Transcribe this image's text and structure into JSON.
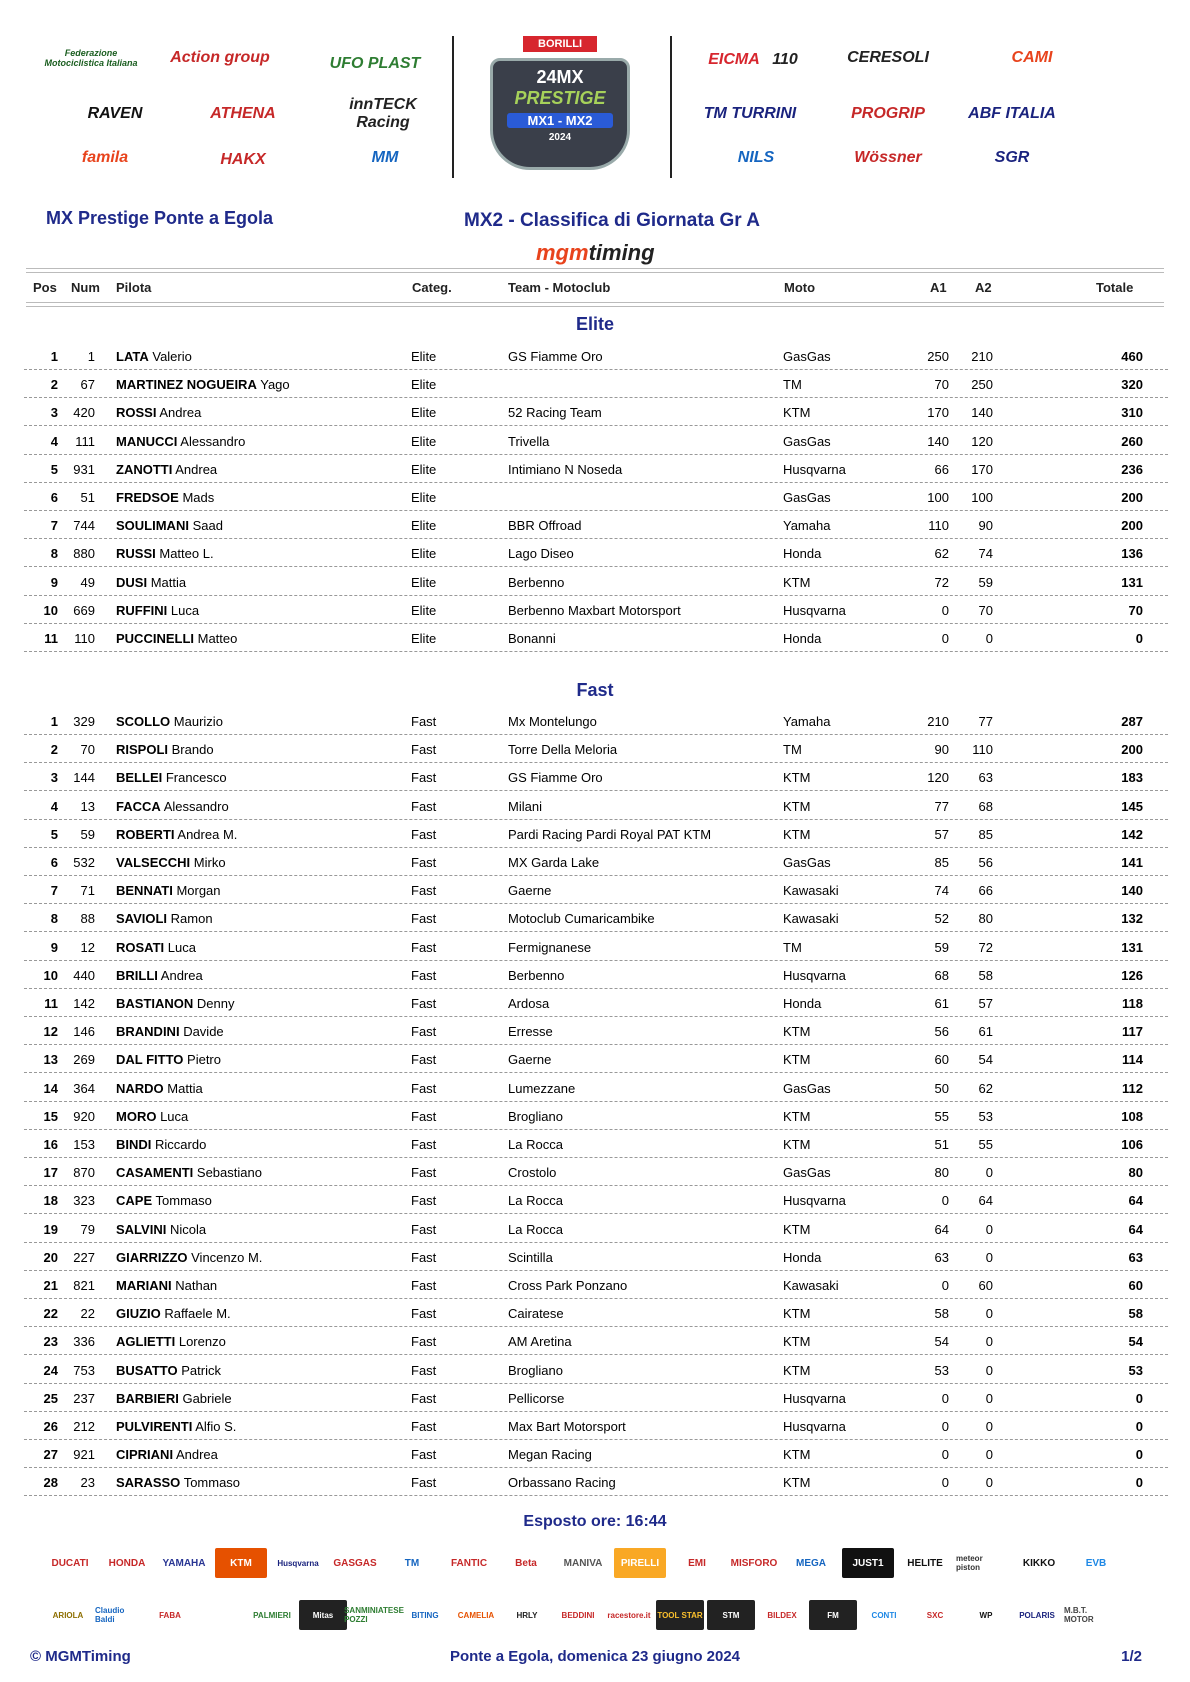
{
  "header_logos_left": [
    "Federazione Motociclistica Italiana",
    "Action group",
    "UFO PLAST",
    "RAVEN",
    "ATHENA",
    "innTECK Racing",
    "famila",
    "HAKX",
    "MM"
  ],
  "center_logo": {
    "top": "BORILLI",
    "brand": "24MX",
    "title": "PRESTIGE",
    "sub": "MX1 - MX2",
    "year": "2024"
  },
  "header_logos_right": [
    "EICMA",
    "110",
    "CERESOLI",
    "CAMI",
    "TM TURRINI",
    "PROGRIP",
    "ABF ITALIA",
    "NILS",
    "Wössner",
    "SGR"
  ],
  "event_title": "MX Prestige Ponte a Egola",
  "report_title": "MX2 - Classifica di Giornata Gr A",
  "timing_logo": {
    "a": "mgm",
    "b": "timing"
  },
  "columns": {
    "pos": "Pos",
    "num": "Num",
    "pilota": "Pilota",
    "categ": "Categ.",
    "team": "Team - Motoclub",
    "moto": "Moto",
    "a1": "A1",
    "a2": "A2",
    "totale": "Totale"
  },
  "sections": [
    {
      "title": "Elite",
      "rows": [
        [
          "1",
          "1",
          "LATA",
          "Valerio",
          "Elite",
          "GS Fiamme Oro",
          "GasGas",
          "250",
          "210",
          "460"
        ],
        [
          "2",
          "67",
          "MARTINEZ NOGUEIRA",
          "Yago",
          "Elite",
          "",
          "TM",
          "70",
          "250",
          "320"
        ],
        [
          "3",
          "420",
          "ROSSI",
          "Andrea",
          "Elite",
          "52 Racing Team",
          "KTM",
          "170",
          "140",
          "310"
        ],
        [
          "4",
          "111",
          "MANUCCI",
          "Alessandro",
          "Elite",
          "Trivella",
          "GasGas",
          "140",
          "120",
          "260"
        ],
        [
          "5",
          "931",
          "ZANOTTI",
          "Andrea",
          "Elite",
          "Intimiano N Noseda",
          "Husqvarna",
          "66",
          "170",
          "236"
        ],
        [
          "6",
          "51",
          "FREDSOE",
          "Mads",
          "Elite",
          "",
          "GasGas",
          "100",
          "100",
          "200"
        ],
        [
          "7",
          "744",
          "SOULIMANI",
          "Saad",
          "Elite",
          "BBR Offroad",
          "Yamaha",
          "110",
          "90",
          "200"
        ],
        [
          "8",
          "880",
          "RUSSI",
          "Matteo L.",
          "Elite",
          "Lago Diseo",
          "Honda",
          "62",
          "74",
          "136"
        ],
        [
          "9",
          "49",
          "DUSI",
          "Mattia",
          "Elite",
          "Berbenno",
          "KTM",
          "72",
          "59",
          "131"
        ],
        [
          "10",
          "669",
          "RUFFINI",
          "Luca",
          "Elite",
          "Berbenno Maxbart Motorsport",
          "Husqvarna",
          "0",
          "70",
          "70"
        ],
        [
          "11",
          "110",
          "PUCCINELLI",
          "Matteo",
          "Elite",
          "Bonanni",
          "Honda",
          "0",
          "0",
          "0"
        ]
      ]
    },
    {
      "title": "Fast",
      "rows": [
        [
          "1",
          "329",
          "SCOLLO",
          "Maurizio",
          "Fast",
          "Mx Montelungo",
          "Yamaha",
          "210",
          "77",
          "287"
        ],
        [
          "2",
          "70",
          "RISPOLI",
          "Brando",
          "Fast",
          "Torre Della Meloria",
          "TM",
          "90",
          "110",
          "200"
        ],
        [
          "3",
          "144",
          "BELLEI",
          "Francesco",
          "Fast",
          "GS Fiamme Oro",
          "KTM",
          "120",
          "63",
          "183"
        ],
        [
          "4",
          "13",
          "FACCA",
          "Alessandro",
          "Fast",
          "Milani",
          "KTM",
          "77",
          "68",
          "145"
        ],
        [
          "5",
          "59",
          "ROBERTI",
          "Andrea M.",
          "Fast",
          "Pardi Racing Pardi Royal PAT KTM",
          "KTM",
          "57",
          "85",
          "142"
        ],
        [
          "6",
          "532",
          "VALSECCHI",
          "Mirko",
          "Fast",
          "MX Garda Lake",
          "GasGas",
          "85",
          "56",
          "141"
        ],
        [
          "7",
          "71",
          "BENNATI",
          "Morgan",
          "Fast",
          "Gaerne",
          "Kawasaki",
          "74",
          "66",
          "140"
        ],
        [
          "8",
          "88",
          "SAVIOLI",
          "Ramon",
          "Fast",
          "Motoclub Cumaricambike",
          "Kawasaki",
          "52",
          "80",
          "132"
        ],
        [
          "9",
          "12",
          "ROSATI",
          "Luca",
          "Fast",
          "Fermignanese",
          "TM",
          "59",
          "72",
          "131"
        ],
        [
          "10",
          "440",
          "BRILLI",
          "Andrea",
          "Fast",
          "Berbenno",
          "Husqvarna",
          "68",
          "58",
          "126"
        ],
        [
          "11",
          "142",
          "BASTIANON",
          "Denny",
          "Fast",
          "Ardosa",
          "Honda",
          "61",
          "57",
          "118"
        ],
        [
          "12",
          "146",
          "BRANDINI",
          "Davide",
          "Fast",
          "Erresse",
          "KTM",
          "56",
          "61",
          "117"
        ],
        [
          "13",
          "269",
          "DAL FITTO",
          "Pietro",
          "Fast",
          "Gaerne",
          "KTM",
          "60",
          "54",
          "114"
        ],
        [
          "14",
          "364",
          "NARDO",
          "Mattia",
          "Fast",
          "Lumezzane",
          "GasGas",
          "50",
          "62",
          "112"
        ],
        [
          "15",
          "920",
          "MORO",
          "Luca",
          "Fast",
          "Brogliano",
          "KTM",
          "55",
          "53",
          "108"
        ],
        [
          "16",
          "153",
          "BINDI",
          "Riccardo",
          "Fast",
          "La Rocca",
          "KTM",
          "51",
          "55",
          "106"
        ],
        [
          "17",
          "870",
          "CASAMENTI",
          "Sebastiano",
          "Fast",
          "Crostolo",
          "GasGas",
          "80",
          "0",
          "80"
        ],
        [
          "18",
          "323",
          "CAPE",
          "Tommaso",
          "Fast",
          "La Rocca",
          "Husqvarna",
          "0",
          "64",
          "64"
        ],
        [
          "19",
          "79",
          "SALVINI",
          "Nicola",
          "Fast",
          "La Rocca",
          "KTM",
          "64",
          "0",
          "64"
        ],
        [
          "20",
          "227",
          "GIARRIZZO",
          "Vincenzo M.",
          "Fast",
          "Scintilla",
          "Honda",
          "63",
          "0",
          "63"
        ],
        [
          "21",
          "821",
          "MARIANI",
          "Nathan",
          "Fast",
          "Cross Park Ponzano",
          "Kawasaki",
          "0",
          "60",
          "60"
        ],
        [
          "22",
          "22",
          "GIUZIO",
          "Raffaele M.",
          "Fast",
          "Cairatese",
          "KTM",
          "58",
          "0",
          "58"
        ],
        [
          "23",
          "336",
          "AGLIETTI",
          "Lorenzo",
          "Fast",
          "AM Aretina",
          "KTM",
          "54",
          "0",
          "54"
        ],
        [
          "24",
          "753",
          "BUSATTO",
          "Patrick",
          "Fast",
          "Brogliano",
          "KTM",
          "53",
          "0",
          "53"
        ],
        [
          "25",
          "237",
          "BARBIERI",
          "Gabriele",
          "Fast",
          "Pellicorse",
          "Husqvarna",
          "0",
          "0",
          "0"
        ],
        [
          "26",
          "212",
          "PULVIRENTI",
          "Alfio S.",
          "Fast",
          "Max Bart Motorsport",
          "Husqvarna",
          "0",
          "0",
          "0"
        ],
        [
          "27",
          "921",
          "CIPRIANI",
          "Andrea",
          "Fast",
          "Megan Racing",
          "KTM",
          "0",
          "0",
          "0"
        ],
        [
          "28",
          "23",
          "SARASSO",
          "Tommaso",
          "Fast",
          "Orbassano Racing",
          "KTM",
          "0",
          "0",
          "0"
        ]
      ]
    }
  ],
  "exposed": "Esposto ore: 16:44",
  "sponsors_row1": [
    "DUCATI",
    "HONDA",
    "YAMAHA",
    "KTM",
    "Husqvarna",
    "GASGAS",
    "TM",
    "FANTIC",
    "Beta",
    "MANIVA",
    "PIRELLI",
    "EMI",
    "MISFORO",
    "MEGA",
    "JUST1",
    "HELITE",
    "meteor piston",
    "KIKKO",
    "EVB"
  ],
  "sponsors_row2": [
    "ARIOLA",
    "Claudio Baldi",
    "FABA",
    "",
    "PALMIERI",
    "Mitas",
    "SANMINIATESE POZZI",
    "BITING",
    "CAMELIA",
    "HRLY",
    "BEDDINI",
    "racestore.it",
    "TOOL STAR",
    "STM",
    "BILDEX",
    "FM",
    "CONTI",
    "SXC",
    "WP",
    "POLARIS",
    "M.B.T. MOTOR"
  ],
  "footer": {
    "copyright": "© MGMTiming",
    "place_date": "Ponte a Egola, domenica 23 giugno 2024",
    "page": "1/2"
  },
  "colors": {
    "navy": "#1f2a8a",
    "accent": "#e8431c"
  }
}
